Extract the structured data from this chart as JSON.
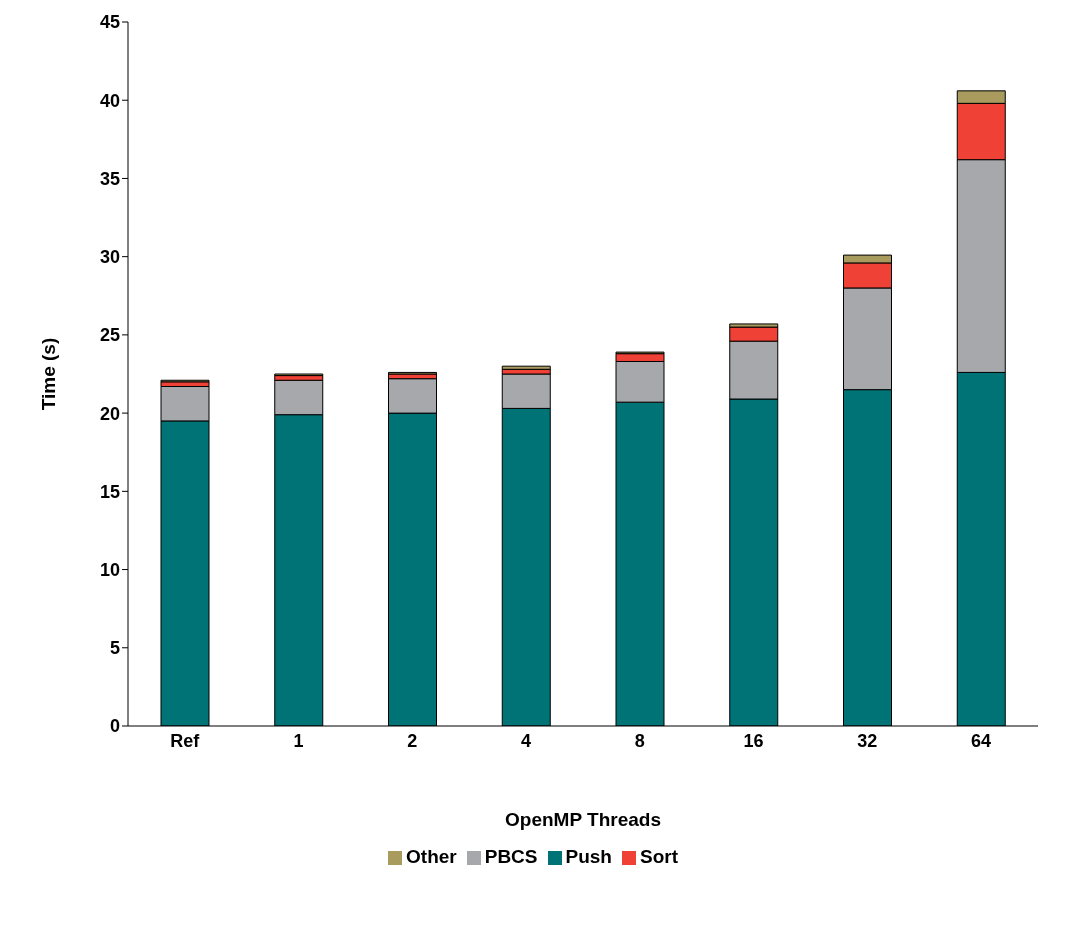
{
  "chart_data": {
    "type": "bar",
    "stacked": true,
    "xlabel": "OpenMP Threads",
    "ylabel": "Time (s)",
    "categories": [
      "Ref",
      "1",
      "2",
      "4",
      "8",
      "16",
      "32",
      "64"
    ],
    "series": [
      {
        "name": "Push",
        "color": "#007377",
        "values": [
          19.5,
          19.9,
          20.0,
          20.3,
          20.7,
          20.9,
          21.5,
          22.6
        ]
      },
      {
        "name": "PBCS",
        "color": "#a6a8ab",
        "values": [
          2.2,
          2.2,
          2.2,
          2.2,
          2.6,
          3.7,
          6.5,
          13.6
        ]
      },
      {
        "name": "Sort",
        "color": "#ef4136",
        "values": [
          0.3,
          0.3,
          0.3,
          0.3,
          0.5,
          0.9,
          1.6,
          3.6
        ]
      },
      {
        "name": "Other",
        "color": "#a99a5e",
        "values": [
          0.1,
          0.1,
          0.1,
          0.2,
          0.1,
          0.2,
          0.5,
          0.8
        ]
      }
    ],
    "ylim": [
      0,
      45
    ],
    "yticks": [
      0,
      5,
      10,
      15,
      20,
      25,
      30,
      35,
      40,
      45
    ],
    "grid": false,
    "legend": "bottom"
  }
}
